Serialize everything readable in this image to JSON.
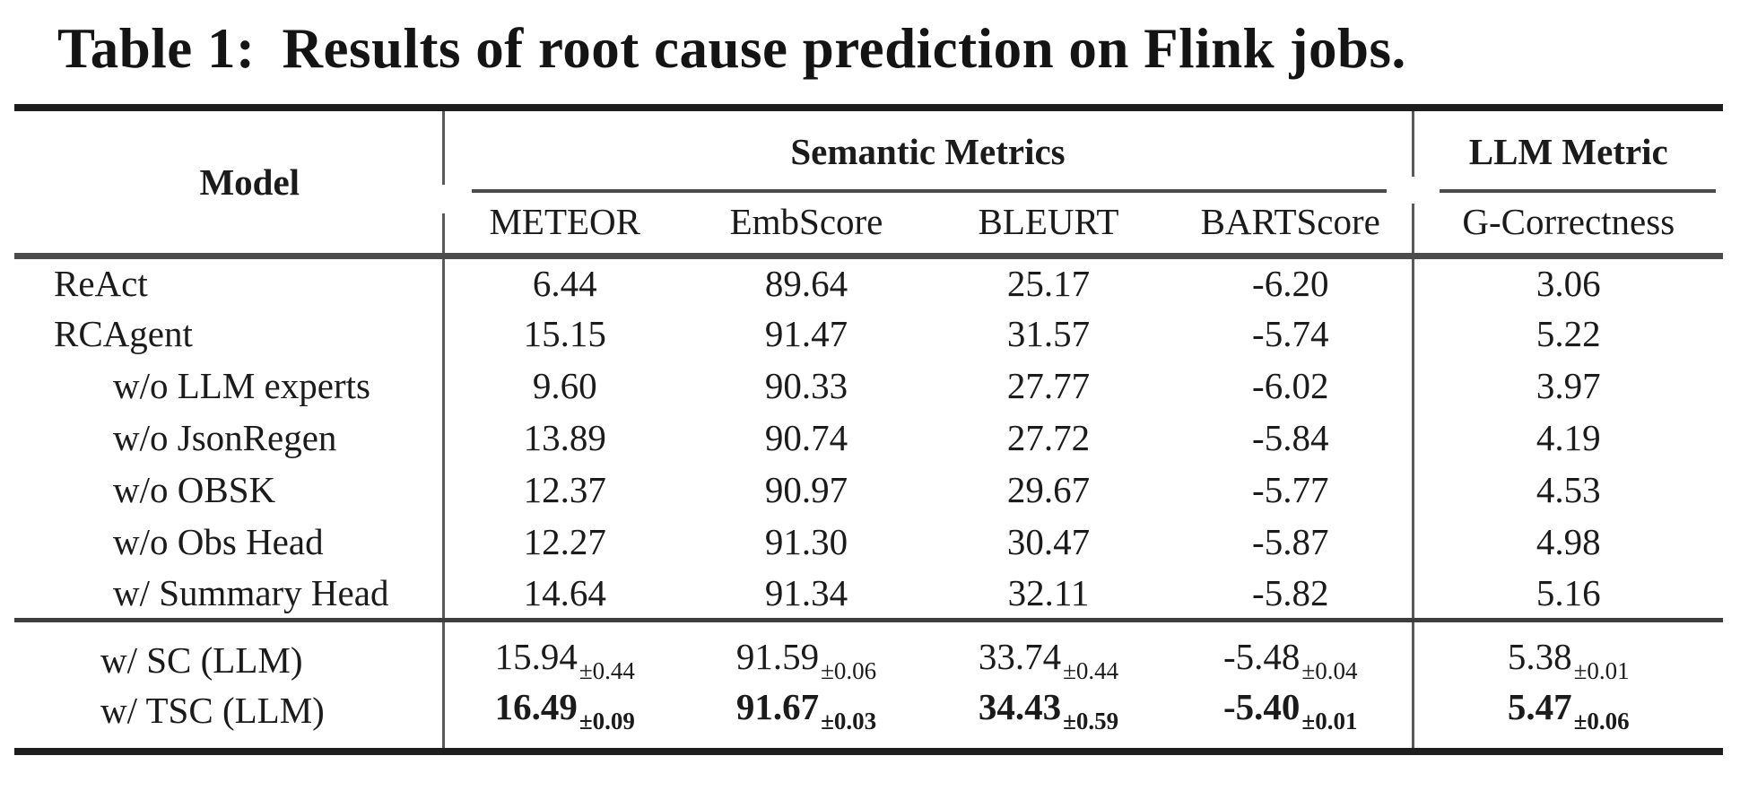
{
  "caption": {
    "label": "Table 1:",
    "text": "Results of root cause prediction on Flink jobs."
  },
  "table": {
    "header": {
      "model_col": "Model",
      "groups": [
        {
          "label": "Semantic Metrics",
          "span": 4
        },
        {
          "label": "LLM Metric",
          "span": 1
        }
      ],
      "columns": [
        "METEOR",
        "EmbScore",
        "BLEURT",
        "BARTScore",
        "G-Correctness"
      ]
    },
    "rows": [
      {
        "model": "ReAct",
        "values": [
          "6.44",
          "89.64",
          "25.17",
          "-6.20",
          "3.06"
        ]
      },
      {
        "model": "RCAgent",
        "values": [
          "15.15",
          "91.47",
          "31.57",
          "-5.74",
          "5.22"
        ]
      },
      {
        "model": "w/o LLM experts",
        "values": [
          "9.60",
          "90.33",
          "27.77",
          "-6.02",
          "3.97"
        ]
      },
      {
        "model": "w/o JsonRegen",
        "values": [
          "13.89",
          "90.74",
          "27.72",
          "-5.84",
          "4.19"
        ]
      },
      {
        "model": "w/o OBSK",
        "values": [
          "12.37",
          "90.97",
          "29.67",
          "-5.77",
          "4.53"
        ]
      },
      {
        "model": "w/o Obs Head",
        "values": [
          "12.27",
          "91.30",
          "30.47",
          "-5.87",
          "4.98"
        ]
      },
      {
        "model": "w/ Summary Head",
        "values": [
          "14.64",
          "91.34",
          "32.11",
          "-5.82",
          "5.16"
        ]
      }
    ],
    "llm_rows": [
      {
        "model": "w/ SC (LLM)",
        "values": [
          {
            "v": "15.94",
            "e": "±0.44"
          },
          {
            "v": "91.59",
            "e": "±0.06"
          },
          {
            "v": "33.74",
            "e": "±0.44"
          },
          {
            "v": "-5.48",
            "e": "±0.04"
          },
          {
            "v": "5.38",
            "e": "±0.01"
          }
        ]
      },
      {
        "model": "w/ TSC (LLM)",
        "values": [
          {
            "v": "16.49",
            "e": "±0.09"
          },
          {
            "v": "91.67",
            "e": "±0.03"
          },
          {
            "v": "34.43",
            "e": "±0.59"
          },
          {
            "v": "-5.40",
            "e": "±0.01"
          },
          {
            "v": "5.47",
            "e": "±0.06"
          }
        ]
      }
    ]
  },
  "colors": {
    "background": "#ffffff",
    "text": "#1b1b1b",
    "thick_rule": "#1d1d1d",
    "gray_rule": "#4c4c4c",
    "vertical_bar": "#5a5a5a"
  }
}
